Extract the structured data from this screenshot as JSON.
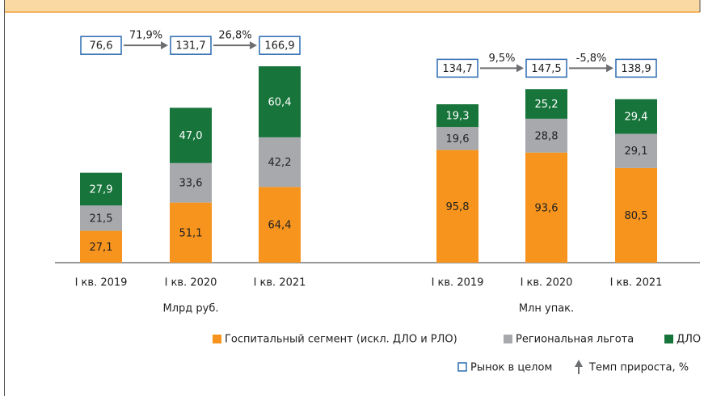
{
  "chart_data": [
    {
      "type": "bar",
      "stacked": true,
      "x_label": "Млрд руб.",
      "categories": [
        "I кв. 2019",
        "I кв. 2020",
        "I кв. 2021"
      ],
      "series": [
        {
          "name": "Госпитальный сегмент (искл. ДЛО и РЛО)",
          "color": "#f7941d",
          "values": [
            27.1,
            51.1,
            64.4
          ],
          "value_labels": [
            "27,1",
            "51,1",
            "64,4"
          ]
        },
        {
          "name": "Региональная льгота",
          "color": "#a7a9ac",
          "values": [
            21.5,
            33.6,
            42.2
          ],
          "value_labels": [
            "21,5",
            "33,6",
            "42,2"
          ]
        },
        {
          "name": "ДЛО",
          "color": "#17743a",
          "values": [
            27.9,
            47.0,
            60.4
          ],
          "value_labels": [
            "27,9",
            "47,0",
            "60,4"
          ]
        }
      ],
      "totals": {
        "name": "Рынок в целом",
        "color": "#2a6ab0",
        "values": [
          76.6,
          131.7,
          166.9
        ],
        "value_labels": [
          "76,6",
          "131,7",
          "166,9"
        ]
      },
      "growth": {
        "name": "Темп прироста, %",
        "values": [
          71.9,
          26.8
        ],
        "value_labels": [
          "71,9%",
          "26,8%"
        ]
      }
    },
    {
      "type": "bar",
      "stacked": true,
      "x_label": "Млн упак.",
      "categories": [
        "I кв. 2019",
        "I кв. 2020",
        "I кв. 2021"
      ],
      "series": [
        {
          "color": "#f7941d",
          "values": [
            95.8,
            93.6,
            80.5
          ],
          "value_labels": [
            "95,8",
            "93,6",
            "80,5"
          ]
        },
        {
          "color": "#a7a9ac",
          "values": [
            19.6,
            28.8,
            29.1
          ],
          "value_labels": [
            "19,6",
            "28,8",
            "29,1"
          ]
        },
        {
          "color": "#17743a",
          "values": [
            19.3,
            25.2,
            29.4
          ],
          "value_labels": [
            "19,3",
            "25,2",
            "29,4"
          ]
        }
      ],
      "totals": {
        "color": "#2a6ab0",
        "values": [
          134.7,
          147.5,
          138.9
        ],
        "value_labels": [
          "134,7",
          "147,5",
          "138,9"
        ]
      },
      "growth": {
        "values": [
          9.5,
          -5.8
        ],
        "value_labels": [
          "9,5%",
          "-5,8%"
        ]
      }
    }
  ]
}
